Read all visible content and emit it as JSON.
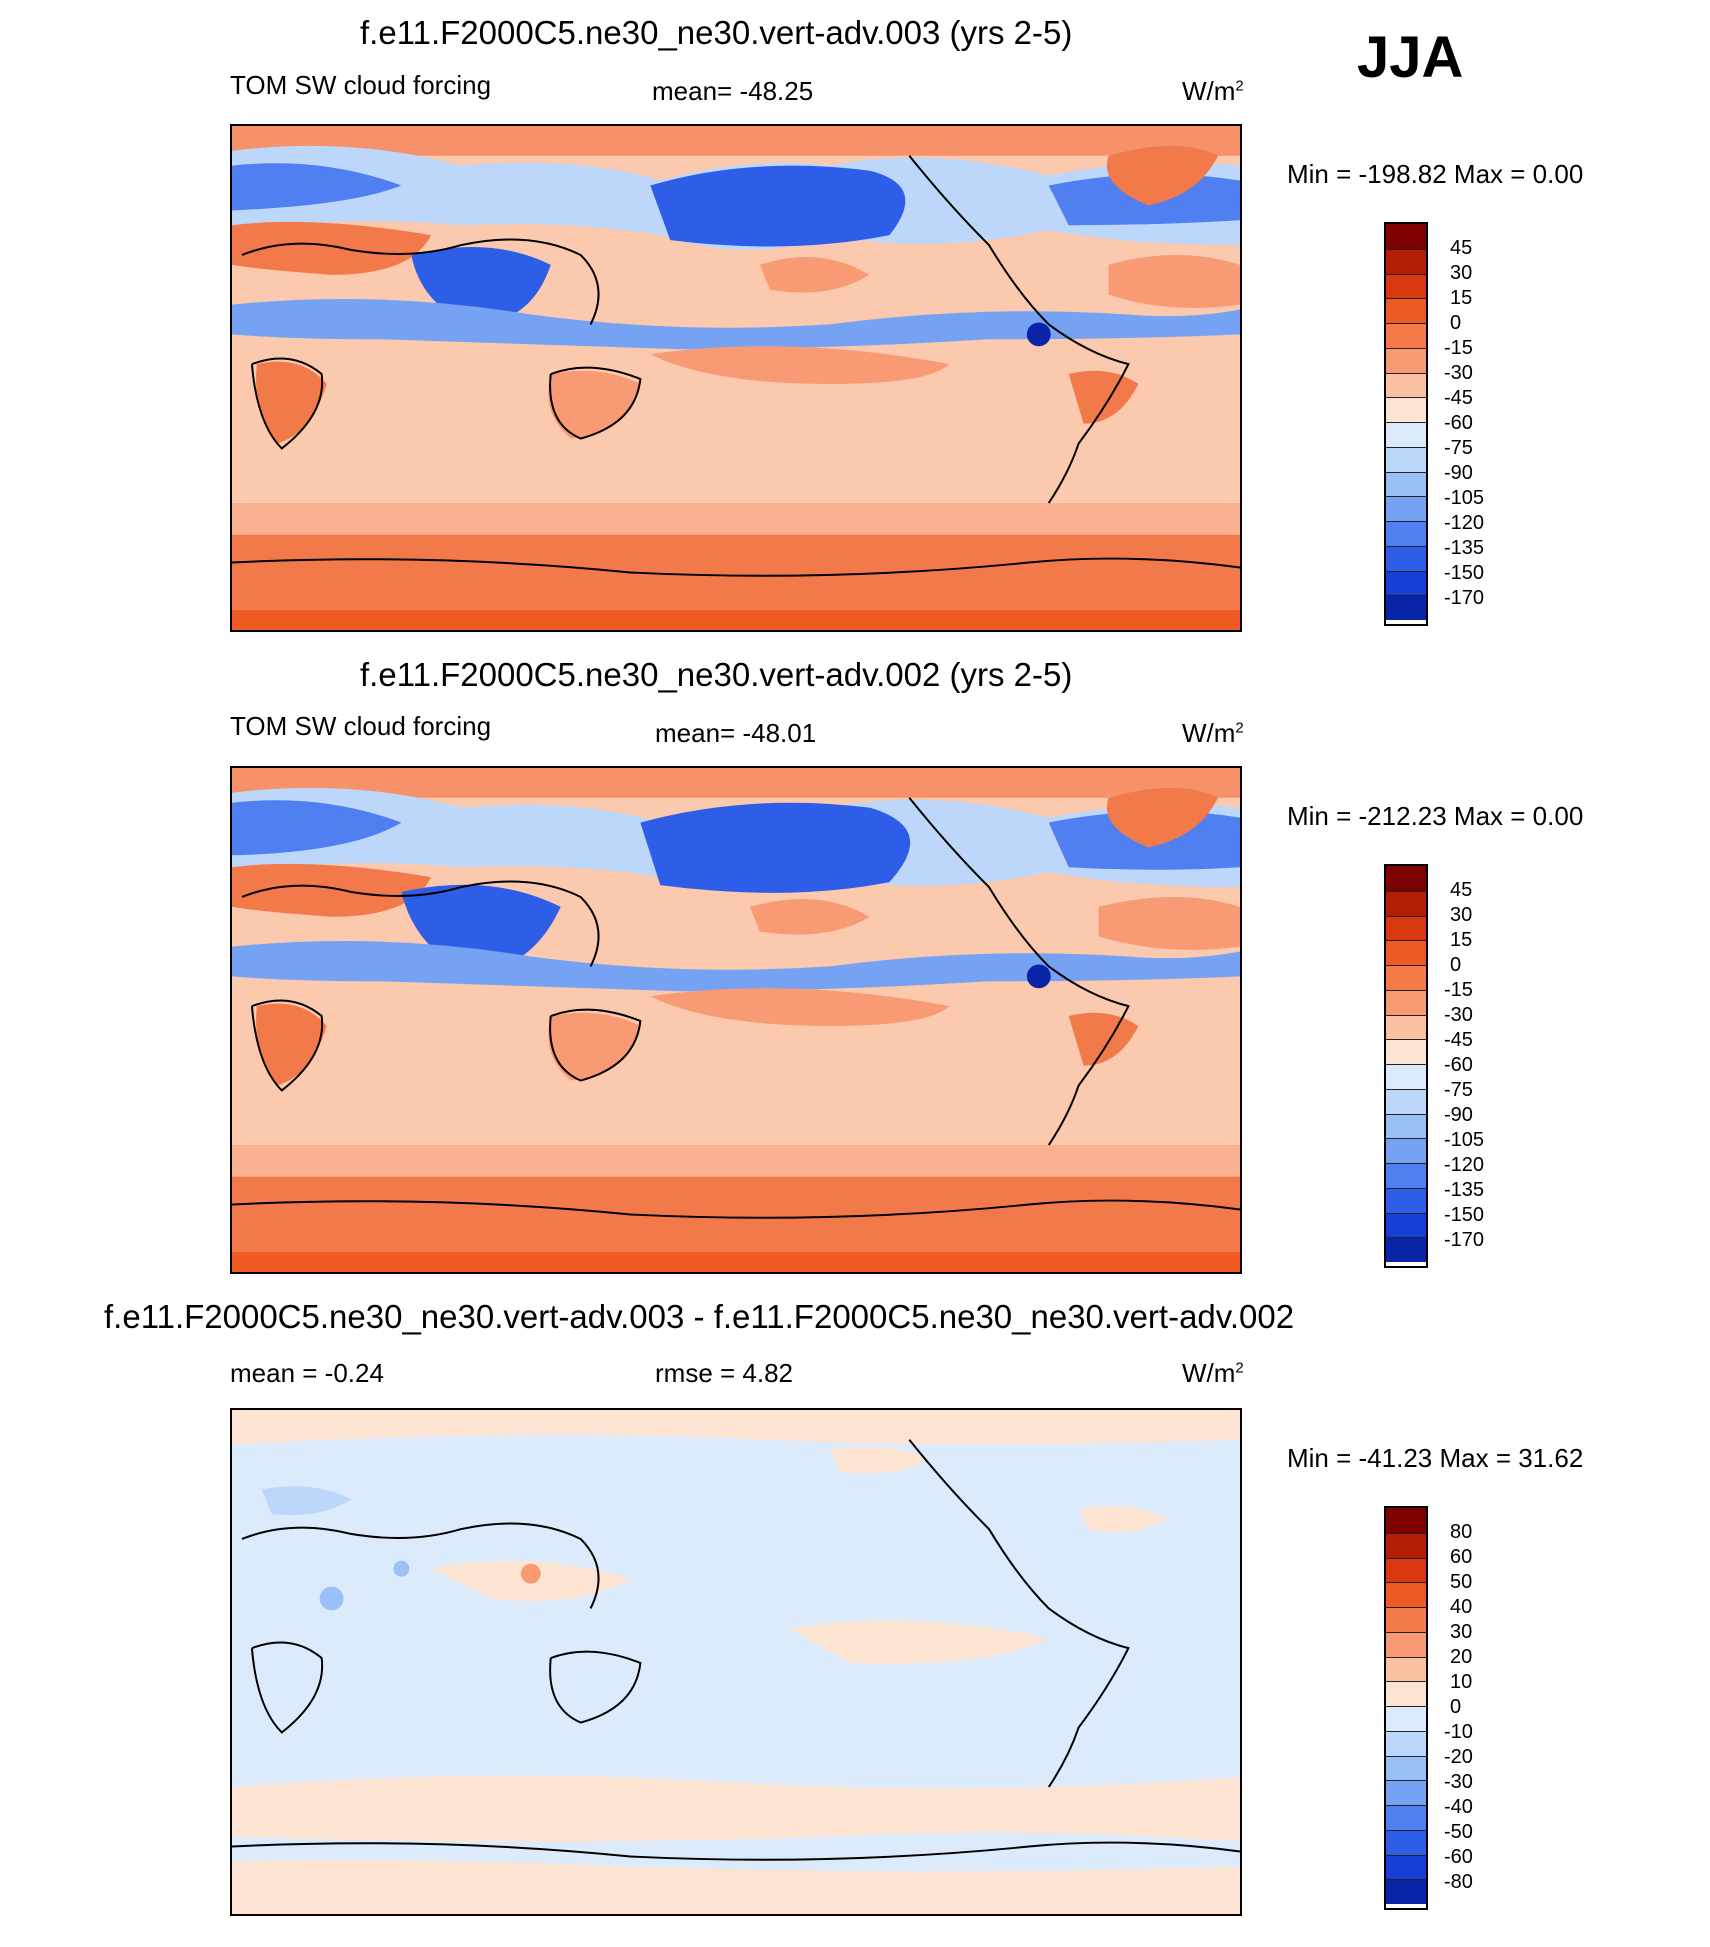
{
  "season": "JJA",
  "panels": [
    {
      "title": "f.e11.F2000C5.ne30_ne30.vert-adv.003 (yrs 2-5)",
      "variable": "TOM SW cloud forcing",
      "stat": "mean= -48.25",
      "units": "W/m",
      "units_sup": "2",
      "minmax": "Min = -198.82 Max =    0.00",
      "colorbar": {
        "labels": [
          "45",
          "30",
          "15",
          "0",
          "-15",
          "-30",
          "-45",
          "-60",
          "-75",
          "-90",
          "-105",
          "-120",
          "-135",
          "-150",
          "-170"
        ],
        "colors": [
          "#7f0000",
          "#b31d05",
          "#d8390e",
          "#ef5a22",
          "#f47a48",
          "#f89b74",
          "#fbc1a3",
          "#fde3d2",
          "#dcebfb",
          "#bdd7fb",
          "#9bbff7",
          "#76a2f3",
          "#4f7ff0",
          "#2e5ee8",
          "#173fd8",
          "#0a24a8"
        ]
      }
    },
    {
      "title": "f.e11.F2000C5.ne30_ne30.vert-adv.002 (yrs 2-5)",
      "variable": "TOM SW cloud forcing",
      "stat": "mean= -48.01",
      "units": "W/m",
      "units_sup": "2",
      "minmax": "Min = -212.23 Max =    0.00",
      "colorbar": {
        "labels": [
          "45",
          "30",
          "15",
          "0",
          "-15",
          "-30",
          "-45",
          "-60",
          "-75",
          "-90",
          "-105",
          "-120",
          "-135",
          "-150",
          "-170"
        ],
        "colors": [
          "#7f0000",
          "#b31d05",
          "#d8390e",
          "#ef5a22",
          "#f47a48",
          "#f89b74",
          "#fbc1a3",
          "#fde3d2",
          "#dcebfb",
          "#bdd7fb",
          "#9bbff7",
          "#76a2f3",
          "#4f7ff0",
          "#2e5ee8",
          "#173fd8",
          "#0a24a8"
        ]
      }
    },
    {
      "title": "f.e11.F2000C5.ne30_ne30.vert-adv.003 - f.e11.F2000C5.ne30_ne30.vert-adv.002",
      "stat": "mean =  -0.24",
      "stat2": "rmse =   4.82",
      "units": "W/m",
      "units_sup": "2",
      "minmax": "Min = -41.23 Max =  31.62",
      "colorbar": {
        "labels": [
          "80",
          "60",
          "50",
          "40",
          "30",
          "20",
          "10",
          "0",
          "-10",
          "-20",
          "-30",
          "-40",
          "-50",
          "-60",
          "-80"
        ],
        "colors": [
          "#7f0000",
          "#b31d05",
          "#d8390e",
          "#ef5a22",
          "#f47a48",
          "#f89b74",
          "#fbc1a3",
          "#fde3d2",
          "#dcebfb",
          "#bdd7fb",
          "#9bbff7",
          "#76a2f3",
          "#4f7ff0",
          "#2e5ee8",
          "#173fd8",
          "#0a24a8"
        ]
      }
    }
  ]
}
